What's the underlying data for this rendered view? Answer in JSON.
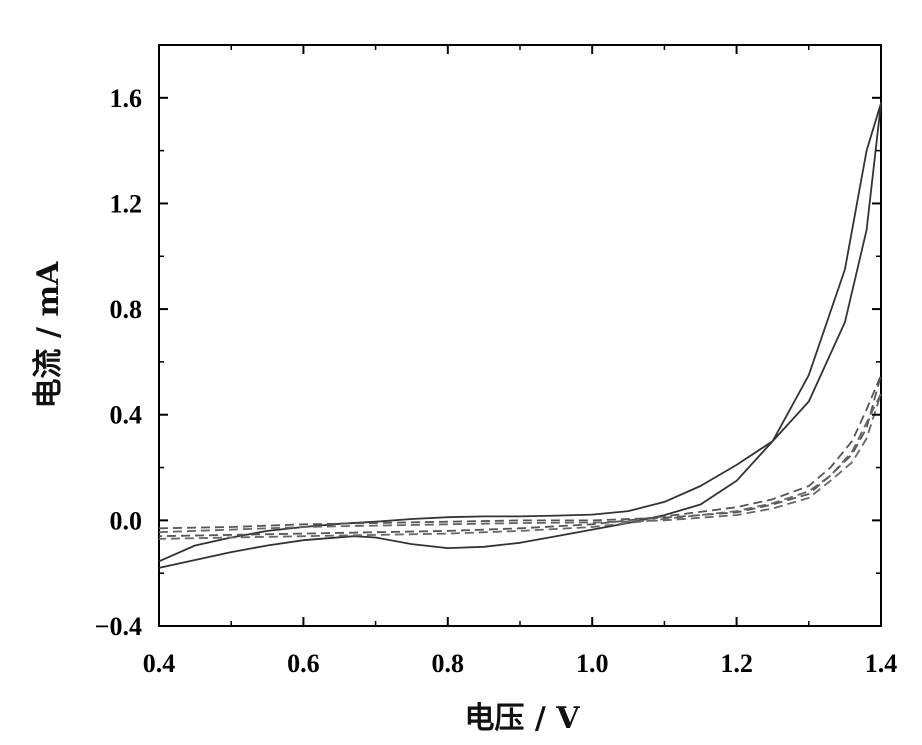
{
  "chart_data": {
    "type": "line",
    "title": "",
    "xlabel": "电压 / V",
    "ylabel": "电流 / mA",
    "xlim": [
      0.4,
      1.4
    ],
    "ylim": [
      -0.4,
      1.8
    ],
    "xticks": [
      0.4,
      0.6,
      0.8,
      1.0,
      1.2,
      1.4
    ],
    "xtick_labels": [
      "0.4",
      "0.6",
      "0.8",
      "1.0",
      "1.2",
      "1.4"
    ],
    "yticks": [
      -0.4,
      0.0,
      0.4,
      0.8,
      1.2,
      1.6
    ],
    "ytick_labels": [
      "−0.4",
      "0.0",
      "0.4",
      "0.8",
      "1.2",
      "1.6"
    ],
    "grid": false,
    "legend": "none",
    "series": [
      {
        "style": "solid",
        "color": "#333333",
        "x": [
          0.4,
          0.45,
          0.5,
          0.55,
          0.6,
          0.65,
          0.7,
          0.75,
          0.8,
          0.85,
          0.9,
          0.95,
          1.0,
          1.05,
          1.1,
          1.15,
          1.2,
          1.25,
          1.3,
          1.35,
          1.38,
          1.4,
          1.38,
          1.35,
          1.3,
          1.25,
          1.2,
          1.15,
          1.1,
          1.05,
          1.0,
          0.95,
          0.9,
          0.85,
          0.8,
          0.75,
          0.7,
          0.67,
          0.6,
          0.55,
          0.5,
          0.45,
          0.4
        ],
        "y": [
          -0.155,
          -0.095,
          -0.065,
          -0.04,
          -0.025,
          -0.013,
          -0.005,
          0.005,
          0.012,
          0.015,
          0.015,
          0.018,
          0.022,
          0.035,
          0.07,
          0.13,
          0.21,
          0.3,
          0.45,
          0.75,
          1.1,
          1.58,
          1.4,
          0.95,
          0.55,
          0.3,
          0.15,
          0.06,
          0.02,
          -0.01,
          -0.035,
          -0.06,
          -0.085,
          -0.1,
          -0.105,
          -0.09,
          -0.065,
          -0.06,
          -0.075,
          -0.095,
          -0.12,
          -0.15,
          -0.18
        ]
      },
      {
        "style": "dashed",
        "color": "#555555",
        "x": [
          0.4,
          0.5,
          0.6,
          0.7,
          0.8,
          0.9,
          1.0,
          1.1,
          1.2,
          1.25,
          1.3,
          1.33,
          1.36,
          1.38,
          1.4,
          1.38,
          1.36,
          1.33,
          1.3,
          1.25,
          1.2,
          1.1,
          1.0,
          0.9,
          0.8,
          0.7,
          0.6,
          0.5,
          0.4
        ],
        "y": [
          -0.03,
          -0.025,
          -0.015,
          -0.01,
          -0.005,
          0.0,
          0.0,
          0.01,
          0.03,
          0.06,
          0.1,
          0.17,
          0.25,
          0.35,
          0.55,
          0.42,
          0.3,
          0.2,
          0.13,
          0.08,
          0.05,
          0.015,
          -0.015,
          -0.03,
          -0.04,
          -0.045,
          -0.05,
          -0.055,
          -0.06
        ]
      },
      {
        "style": "dashed",
        "color": "#666666",
        "x": [
          0.4,
          0.5,
          0.6,
          0.7,
          0.8,
          0.9,
          1.0,
          1.1,
          1.2,
          1.25,
          1.3,
          1.33,
          1.36,
          1.38,
          1.4,
          1.38,
          1.36,
          1.33,
          1.3,
          1.25,
          1.2,
          1.1,
          1.0,
          0.9,
          0.8,
          0.7,
          0.6,
          0.5,
          0.4
        ],
        "y": [
          -0.045,
          -0.035,
          -0.025,
          -0.02,
          -0.015,
          -0.01,
          -0.008,
          0.0,
          0.02,
          0.045,
          0.085,
          0.15,
          0.22,
          0.31,
          0.48,
          0.37,
          0.26,
          0.17,
          0.11,
          0.065,
          0.035,
          0.005,
          -0.025,
          -0.04,
          -0.05,
          -0.055,
          -0.06,
          -0.065,
          -0.07
        ]
      }
    ]
  }
}
